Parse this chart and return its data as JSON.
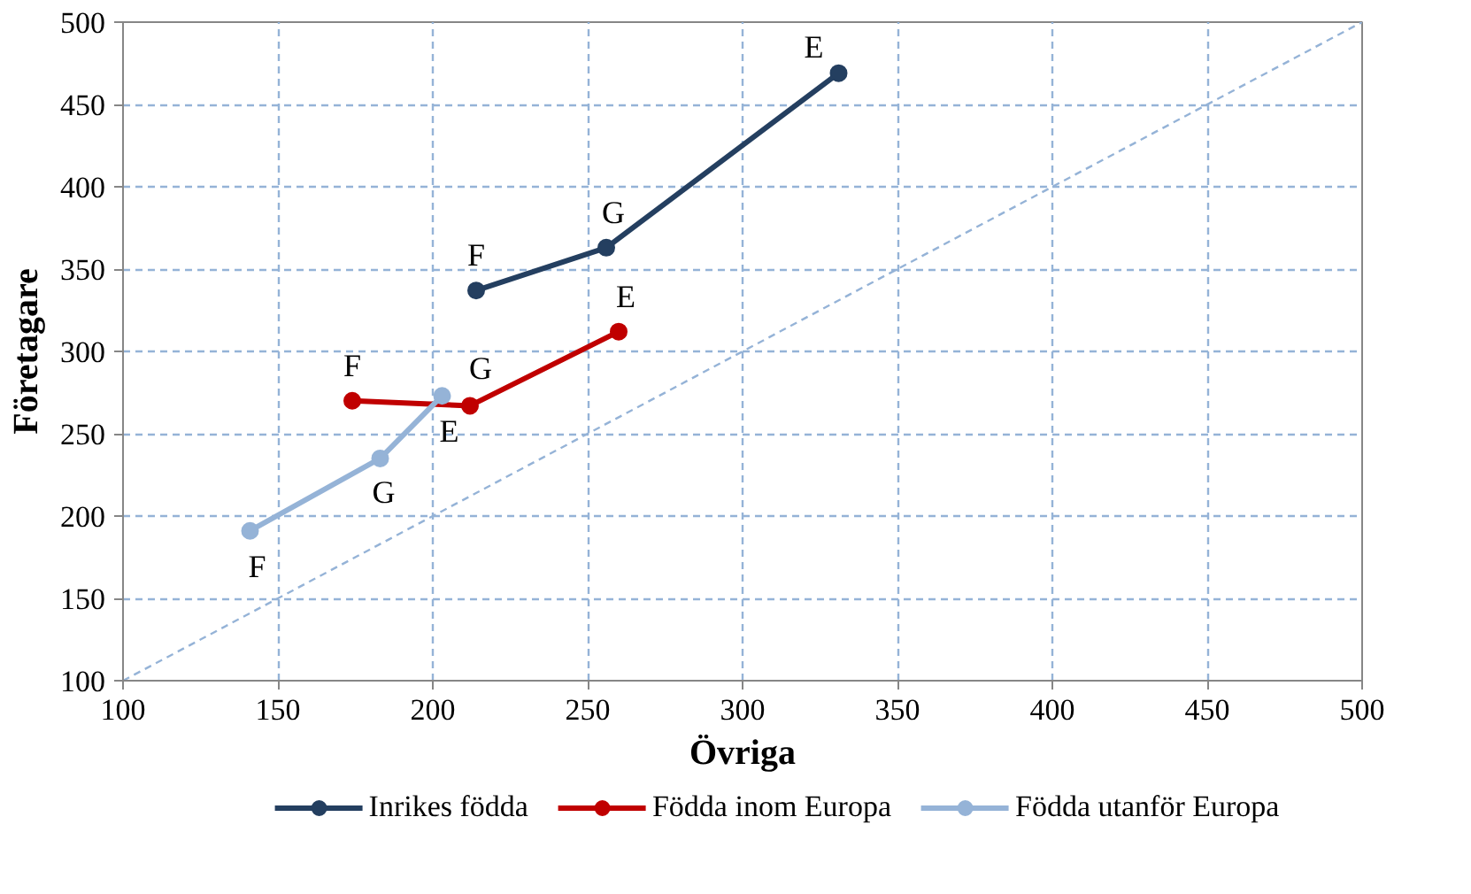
{
  "chart_data": {
    "type": "line",
    "xlabel": "Övriga",
    "ylabel": "Företagare",
    "xlim": [
      100,
      500
    ],
    "ylim": [
      100,
      500
    ],
    "xticks": [
      100,
      150,
      200,
      250,
      300,
      350,
      400,
      450,
      500
    ],
    "yticks": [
      100,
      150,
      200,
      250,
      300,
      350,
      400,
      450,
      500
    ],
    "grid": true,
    "legend": "bottom",
    "marker": "circle",
    "line_style": "solid",
    "series": [
      {
        "name": "Inrikes födda",
        "color": "#243f60",
        "x": [
          214,
          256,
          331
        ],
        "values": [
          337,
          363,
          469
        ]
      },
      {
        "name": "Födda inom Europa",
        "color": "#c00000",
        "x": [
          174,
          212,
          260
        ],
        "values": [
          270,
          267,
          312
        ]
      },
      {
        "name": "Födda utanför Europa",
        "color": "#95b3d7",
        "x": [
          141,
          183,
          203
        ],
        "values": [
          191,
          235,
          273
        ]
      },
      {
        "color": "#95b3d7",
        "x": [
          100,
          500
        ],
        "values": [
          100,
          500
        ],
        "marker": "none",
        "line_style": "dashed"
      }
    ],
    "annotations": [
      {
        "text": "F",
        "x": 214,
        "y": 337
      },
      {
        "text": "G",
        "x": 256,
        "y": 363
      },
      {
        "text": "E",
        "x": 331,
        "y": 469
      },
      {
        "text": "F",
        "x": 174,
        "y": 270
      },
      {
        "text": "G",
        "x": 212,
        "y": 267
      },
      {
        "text": "E",
        "x": 260,
        "y": 312
      },
      {
        "text": "F",
        "x": 141,
        "y": 191
      },
      {
        "text": "G",
        "x": 183,
        "y": 235
      },
      {
        "text": "E",
        "x": 203,
        "y": 273
      }
    ]
  }
}
